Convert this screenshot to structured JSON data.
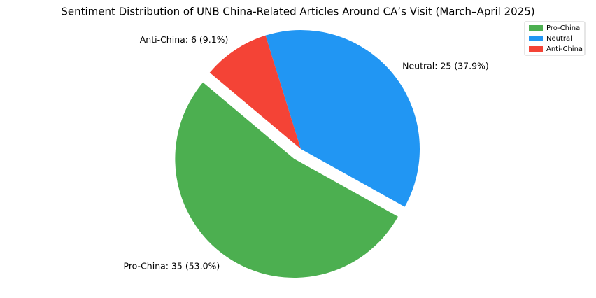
{
  "chart_data": {
    "type": "pie",
    "title": "Sentiment Distribution of UNB China-Related Articles Around CA’s Visit (March–April 2025)",
    "categories": [
      "Pro-China",
      "Neutral",
      "Anti-China"
    ],
    "values": [
      35,
      25,
      6
    ],
    "value_labels": [
      "Pro-China: 35 (53.0%)",
      "Neutral: 25 (37.9%)",
      "Anti-China: 6 (9.1%)"
    ],
    "colors": [
      "#4caf50",
      "#2196f3",
      "#f44336"
    ],
    "explode": [
      0.1,
      0,
      0
    ],
    "start_angle": 140,
    "legend": "upper right"
  }
}
